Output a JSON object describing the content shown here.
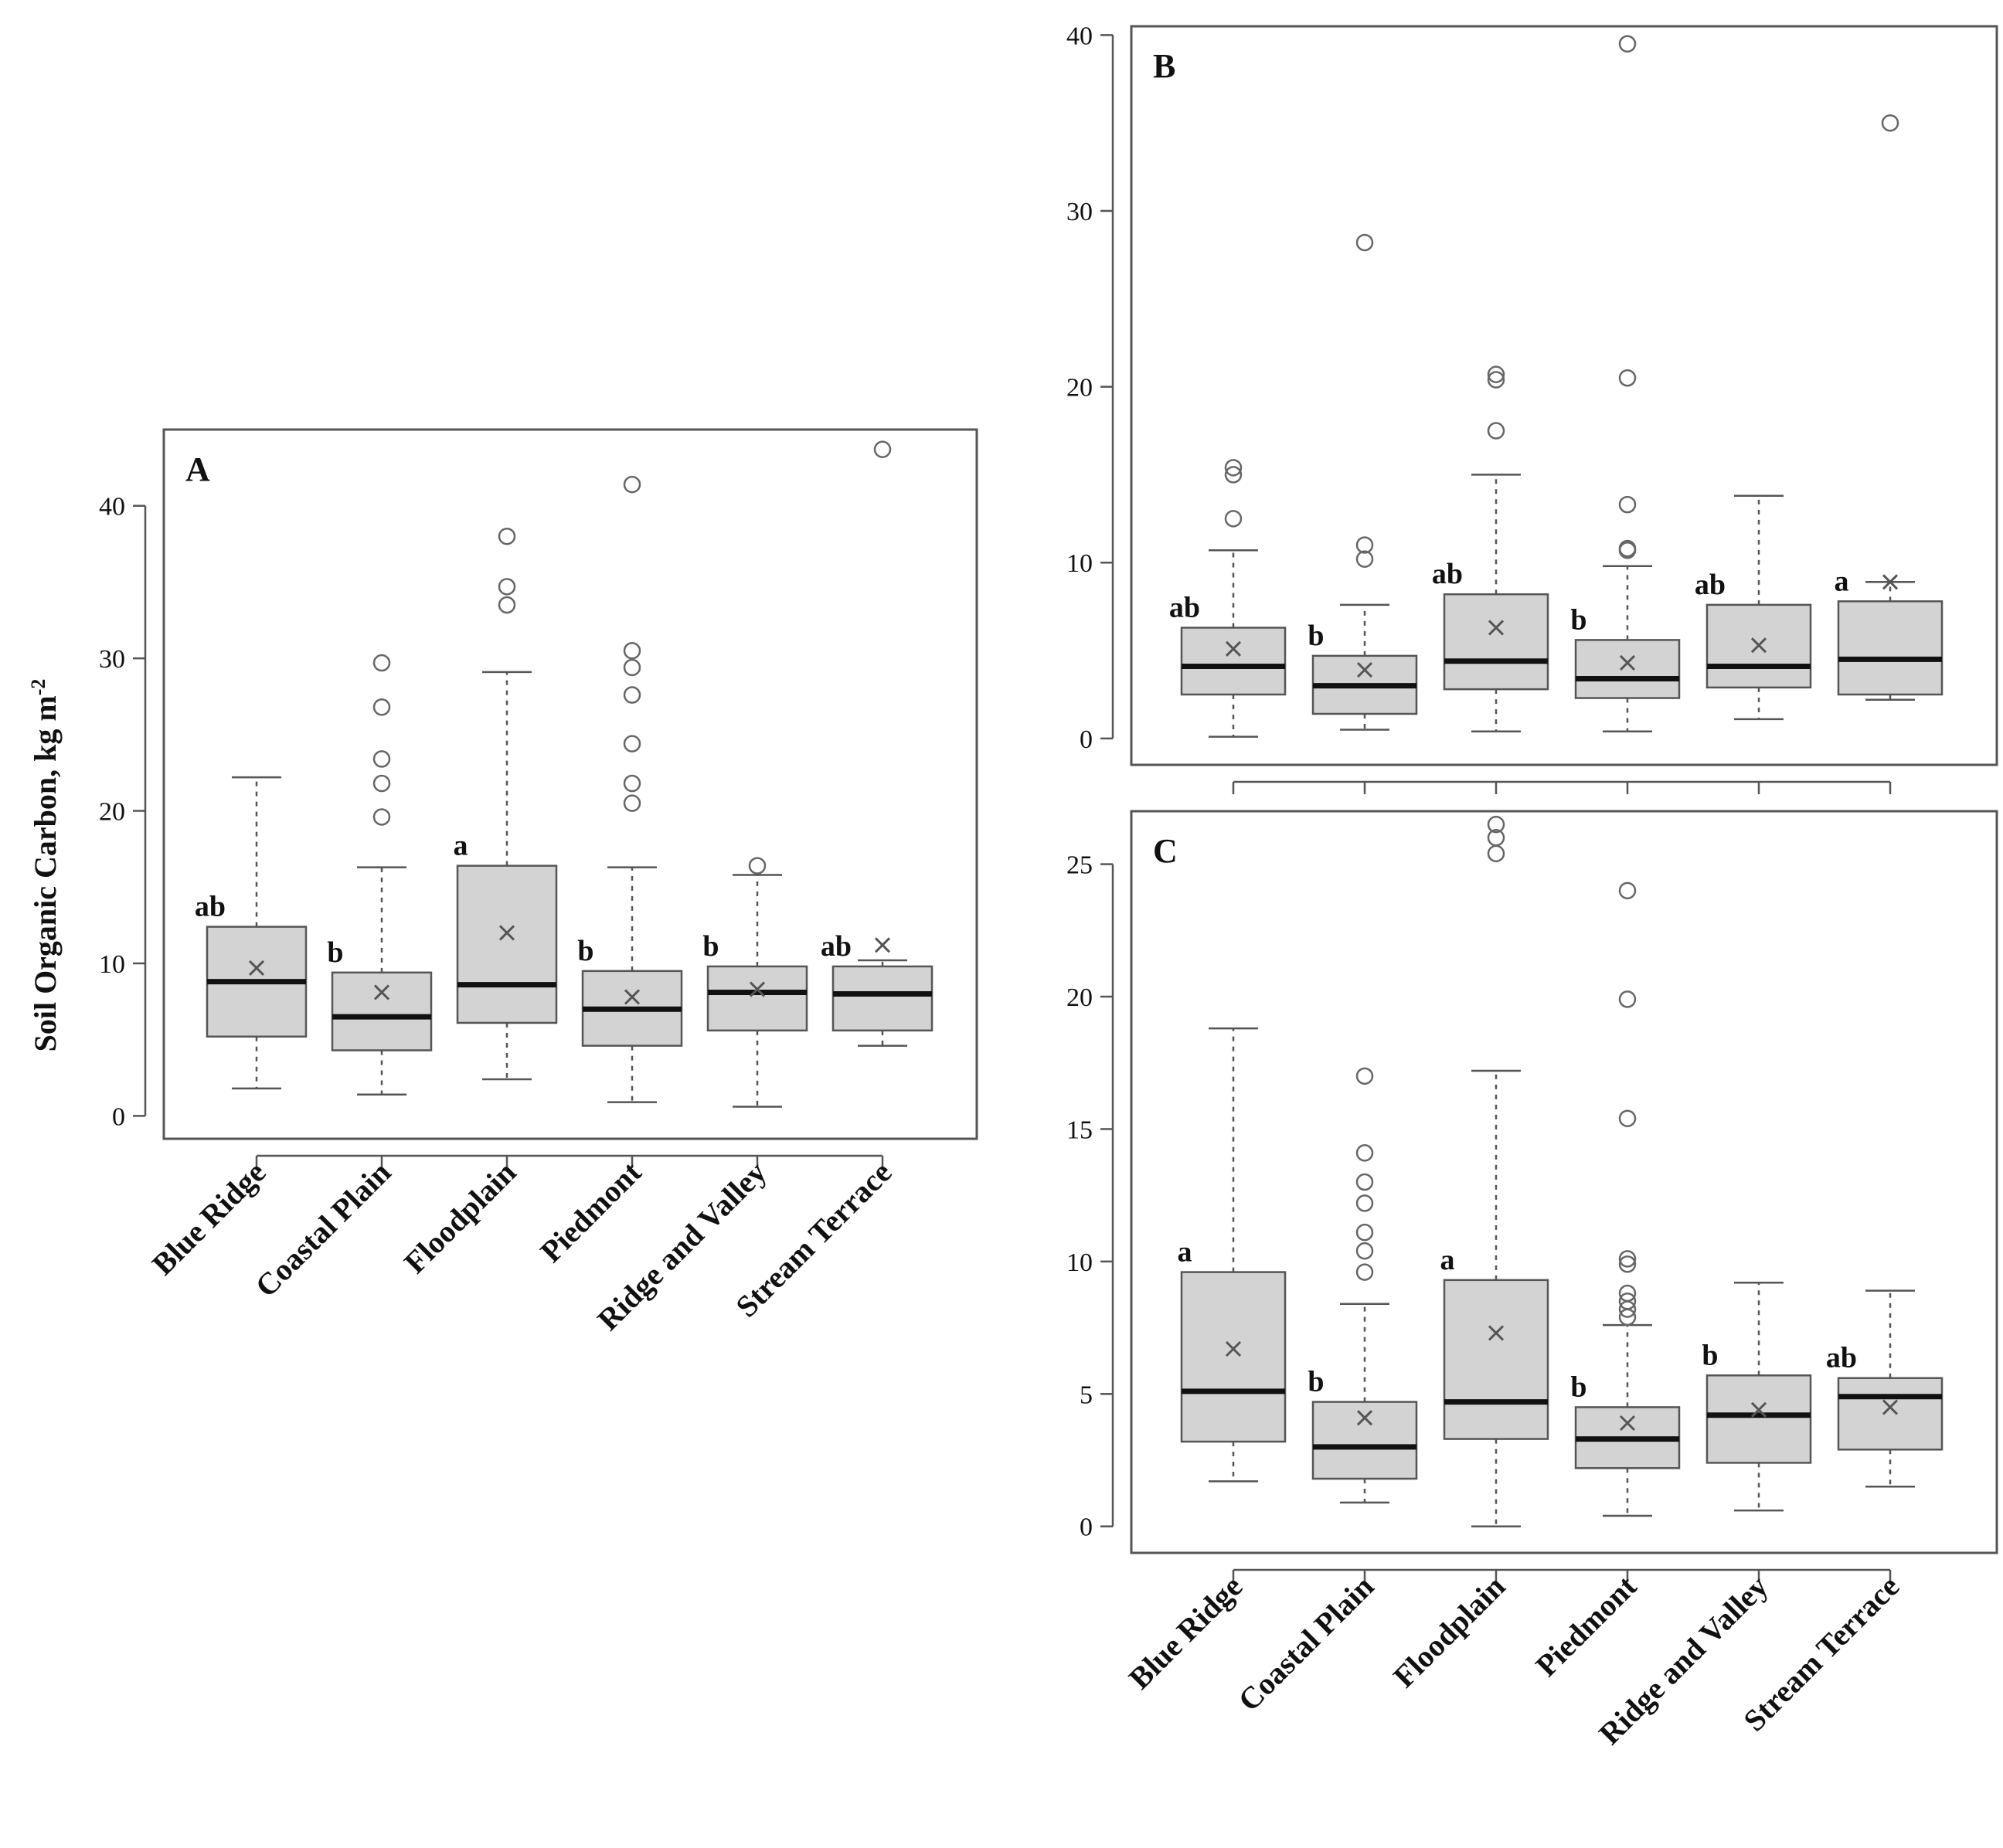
{
  "ylabel": {
    "main": "Soil Organic Carbon, kg m",
    "superscript": "-2"
  },
  "chart_data": [
    {
      "panel": "A",
      "type": "box",
      "ylim": [
        -1.5,
        45
      ],
      "yticks": [
        0,
        10,
        20,
        30,
        40
      ],
      "categories": [
        "Blue Ridge",
        "Coastal Plain",
        "Floodplain",
        "Piedmont",
        "Ridge and Valley",
        "Stream Terrace"
      ],
      "boxes": [
        {
          "category": "Blue Ridge",
          "letter": "ab",
          "whisker_low": 1.8,
          "q1": 5.2,
          "median": 8.8,
          "q3": 12.4,
          "whisker_high": 22.2,
          "mean": 9.7,
          "outliers": []
        },
        {
          "category": "Coastal Plain",
          "letter": "b",
          "whisker_low": 1.4,
          "q1": 4.3,
          "median": 6.5,
          "q3": 9.4,
          "whisker_high": 16.3,
          "mean": 8.1,
          "outliers": [
            19.6,
            21.8,
            23.4,
            26.8,
            29.7
          ]
        },
        {
          "category": "Floodplain",
          "letter": "a",
          "whisker_low": 2.4,
          "q1": 6.1,
          "median": 8.6,
          "q3": 16.4,
          "whisker_high": 29.1,
          "mean": 12.0,
          "outliers": [
            33.5,
            34.7,
            38.0
          ]
        },
        {
          "category": "Piedmont",
          "letter": "b",
          "whisker_low": 0.9,
          "q1": 4.6,
          "median": 7.0,
          "q3": 9.5,
          "whisker_high": 16.3,
          "mean": 7.8,
          "outliers": [
            20.5,
            21.8,
            24.4,
            27.6,
            29.4,
            30.5,
            41.4
          ]
        },
        {
          "category": "Ridge and Valley",
          "letter": "b",
          "whisker_low": 0.6,
          "q1": 5.6,
          "median": 8.1,
          "q3": 9.8,
          "whisker_high": 15.8,
          "mean": 8.3,
          "outliers": [
            16.4
          ]
        },
        {
          "category": "Stream Terrace",
          "letter": "ab",
          "whisker_low": 4.6,
          "q1": 5.6,
          "median": 8.0,
          "q3": 9.8,
          "whisker_high": 10.2,
          "mean": 11.2,
          "outliers": [
            43.7
          ]
        }
      ]
    },
    {
      "panel": "B",
      "type": "box",
      "ylim": [
        -1.5,
        40.5
      ],
      "yticks": [
        0,
        10,
        20,
        30,
        40
      ],
      "categories": [
        "Blue Ridge",
        "Coastal Plain",
        "Floodplain",
        "Piedmont",
        "Ridge and Valley",
        "Stream Terrace"
      ],
      "boxes": [
        {
          "category": "Blue Ridge",
          "letter": "ab",
          "whisker_low": 0.1,
          "q1": 2.5,
          "median": 4.1,
          "q3": 6.3,
          "whisker_high": 10.7,
          "mean": 5.1,
          "outliers": [
            12.5,
            15.0,
            15.4
          ]
        },
        {
          "category": "Coastal Plain",
          "letter": "b",
          "whisker_low": 0.5,
          "q1": 1.4,
          "median": 3.0,
          "q3": 4.7,
          "whisker_high": 7.6,
          "mean": 3.9,
          "outliers": [
            10.2,
            11.0,
            28.2
          ]
        },
        {
          "category": "Floodplain",
          "letter": "ab",
          "whisker_low": 0.4,
          "q1": 2.8,
          "median": 4.4,
          "q3": 8.2,
          "whisker_high": 15.0,
          "mean": 6.3,
          "outliers": [
            17.5,
            20.4,
            20.7
          ]
        },
        {
          "category": "Piedmont",
          "letter": "b",
          "whisker_low": 0.4,
          "q1": 2.3,
          "median": 3.4,
          "q3": 5.6,
          "whisker_high": 9.8,
          "mean": 4.3,
          "outliers": [
            10.7,
            10.8,
            13.3,
            20.5,
            39.5
          ]
        },
        {
          "category": "Ridge and Valley",
          "letter": "ab",
          "whisker_low": 1.1,
          "q1": 2.9,
          "median": 4.1,
          "q3": 7.6,
          "whisker_high": 13.8,
          "mean": 5.3,
          "outliers": []
        },
        {
          "category": "Stream Terrace",
          "letter": "a",
          "whisker_low": 2.2,
          "q1": 2.5,
          "median": 4.5,
          "q3": 7.8,
          "whisker_high": 8.9,
          "mean": 8.9,
          "outliers": [
            35.0
          ]
        }
      ]
    },
    {
      "panel": "C",
      "type": "box",
      "ylim": [
        -1,
        27
      ],
      "yticks": [
        0,
        5,
        10,
        15,
        20,
        25
      ],
      "categories": [
        "Blue Ridge",
        "Coastal Plain",
        "Floodplain",
        "Piedmont",
        "Ridge and Valley",
        "Stream Terrace"
      ],
      "boxes": [
        {
          "category": "Blue Ridge",
          "letter": "a",
          "whisker_low": 1.7,
          "q1": 3.2,
          "median": 5.1,
          "q3": 9.6,
          "whisker_high": 18.8,
          "mean": 6.7,
          "outliers": []
        },
        {
          "category": "Coastal Plain",
          "letter": "b",
          "whisker_low": 0.9,
          "q1": 1.8,
          "median": 3.0,
          "q3": 4.7,
          "whisker_high": 8.4,
          "mean": 4.1,
          "outliers": [
            9.6,
            10.4,
            11.1,
            12.2,
            13.0,
            14.1,
            17.0
          ]
        },
        {
          "category": "Floodplain",
          "letter": "a",
          "whisker_low": 0.0,
          "q1": 3.3,
          "median": 4.7,
          "q3": 9.3,
          "whisker_high": 17.2,
          "mean": 7.3,
          "outliers": [
            25.4,
            26.0,
            26.5
          ]
        },
        {
          "category": "Piedmont",
          "letter": "b",
          "whisker_low": 0.4,
          "q1": 2.2,
          "median": 3.3,
          "q3": 4.5,
          "whisker_high": 7.6,
          "mean": 3.9,
          "outliers": [
            7.9,
            8.2,
            8.5,
            8.8,
            9.9,
            10.1,
            15.4,
            19.9,
            24.0
          ]
        },
        {
          "category": "Ridge and Valley",
          "letter": "b",
          "whisker_low": 0.6,
          "q1": 2.4,
          "median": 4.2,
          "q3": 5.7,
          "whisker_high": 9.2,
          "mean": 4.4,
          "outliers": []
        },
        {
          "category": "Stream Terrace",
          "letter": "ab",
          "whisker_low": 1.5,
          "q1": 2.9,
          "median": 4.9,
          "q3": 5.6,
          "whisker_high": 8.9,
          "mean": 4.5,
          "outliers": []
        }
      ]
    }
  ]
}
